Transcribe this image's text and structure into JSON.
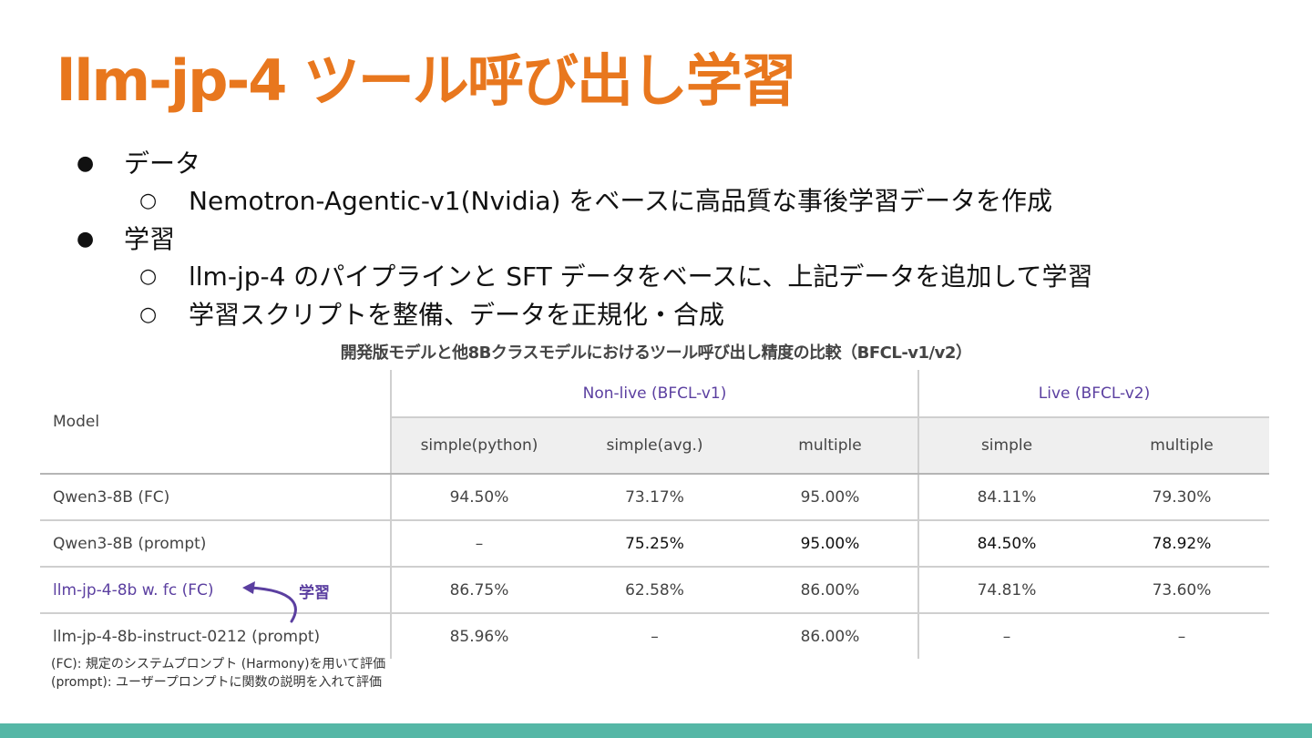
{
  "title": "llm-jp-4 ツール呼び出し学習",
  "bullets": [
    {
      "level": 1,
      "text": "データ"
    },
    {
      "level": 2,
      "text": "Nemotron-Agentic-v1(Nvidia) をベースに高品質な事後学習データを作成"
    },
    {
      "level": 1,
      "text": "学習"
    },
    {
      "level": 2,
      "text": "llm-jp-4 のパイプラインと SFT データをベースに、上記データを追加して学習"
    },
    {
      "level": 2,
      "text": "学習スクリプトを整備、データを正規化・合成"
    }
  ],
  "table_caption": "開発版モデルと他8Bクラスモデルにおけるツール呼び出し精度の比較（BFCL-v1/v2）",
  "table": {
    "model_header": "Model",
    "group_headers": [
      "Non-live (BFCL-v1)",
      "Live (BFCL-v2)"
    ],
    "sub_headers": [
      "simple(python)",
      "simple(avg.)",
      "multiple",
      "simple",
      "multiple"
    ],
    "rows": [
      {
        "model": "Qwen3-8B (FC)",
        "values": [
          "94.50%",
          "73.17%",
          "95.00%",
          "84.11%",
          "79.30%"
        ]
      },
      {
        "model": "Qwen3-8B (prompt)",
        "values": [
          "–",
          "75.25%",
          "95.00%",
          "84.50%",
          "78.92%"
        ]
      },
      {
        "model": "llm-jp-4-8b w. fc (FC)",
        "values": [
          "86.75%",
          "62.58%",
          "86.00%",
          "74.81%",
          "73.60%"
        ]
      },
      {
        "model": "llm-jp-4-8b-instruct-0212 (prompt)",
        "values": [
          "85.96%",
          "–",
          "86.00%",
          "–",
          "–"
        ]
      }
    ]
  },
  "annotation_label": "学習",
  "notes": [
    "(FC): 規定のシステムプロンプト (Harmony)を用いて評価",
    "(prompt): ユーザープロンプトに関数の説明を入れて評価"
  ],
  "colors": {
    "title": "#e8771e",
    "accent": "#5b3fa0",
    "footer": "#55b7a6"
  }
}
